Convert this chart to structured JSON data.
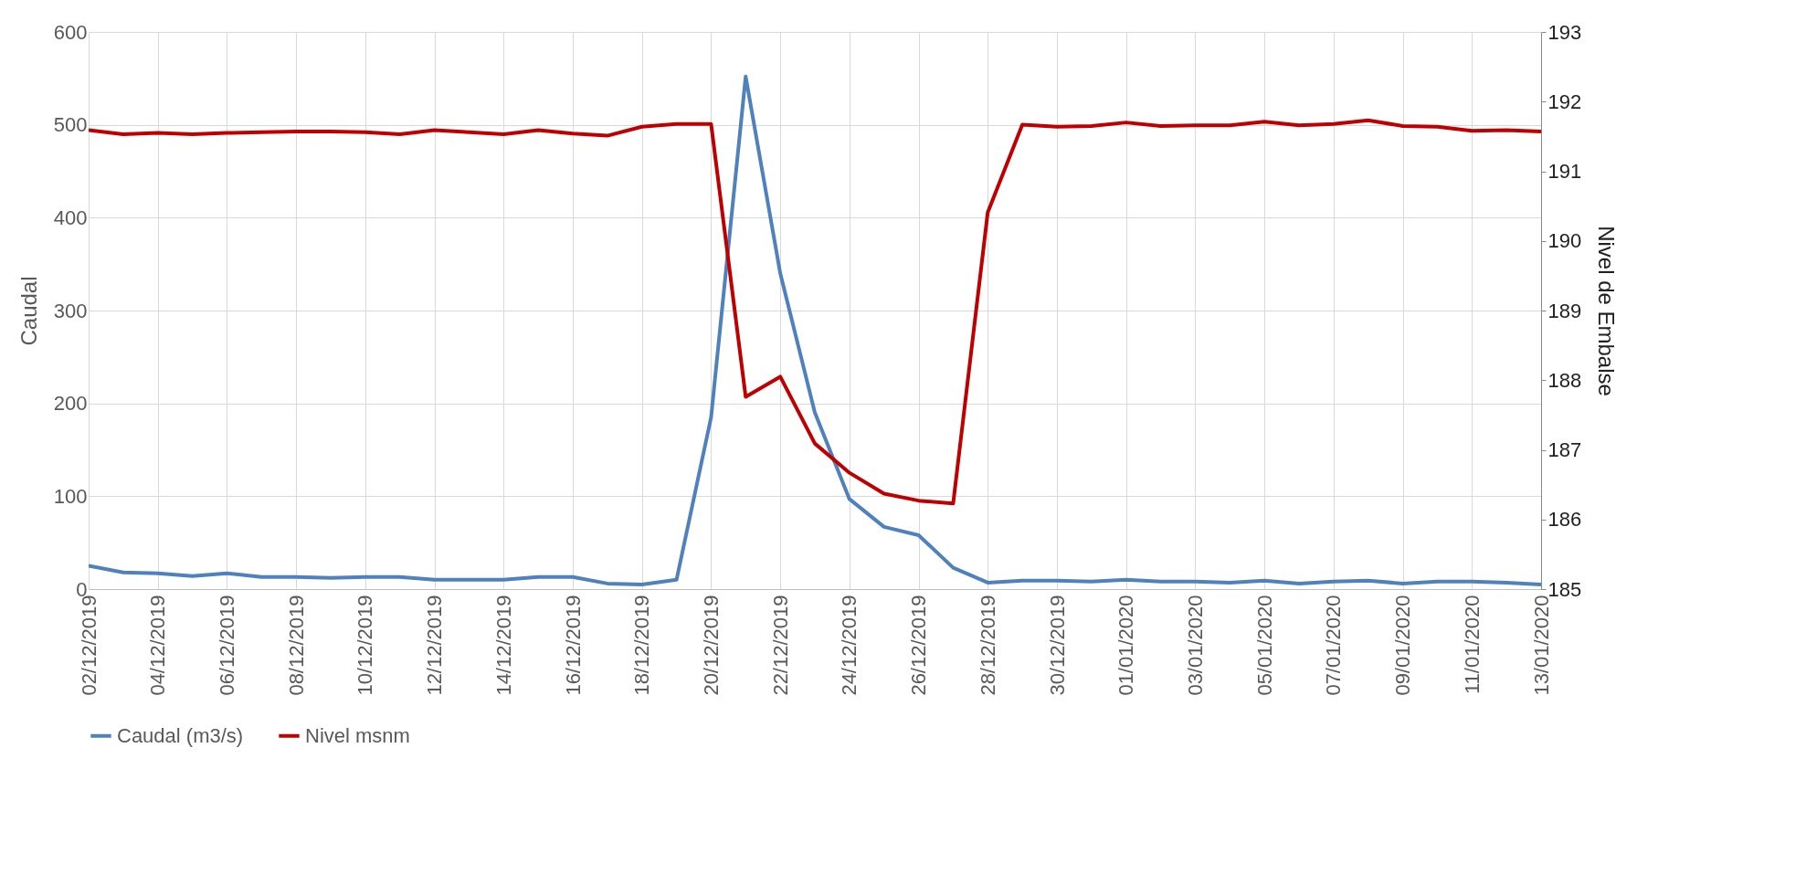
{
  "chart_data": {
    "type": "line",
    "xlabel": null,
    "ylabel": "Caudal",
    "y2label": "Nivel de Embalse",
    "x": [
      "2019-12-02",
      "2019-12-03",
      "2019-12-04",
      "2019-12-05",
      "2019-12-06",
      "2019-12-07",
      "2019-12-08",
      "2019-12-09",
      "2019-12-10",
      "2019-12-11",
      "2019-12-12",
      "2019-12-13",
      "2019-12-14",
      "2019-12-15",
      "2019-12-16",
      "2019-12-17",
      "2019-12-18",
      "2019-12-19",
      "2019-12-20",
      "2019-12-21",
      "2019-12-22",
      "2019-12-23",
      "2019-12-24",
      "2019-12-25",
      "2019-12-26",
      "2019-12-27",
      "2019-12-28",
      "2019-12-29",
      "2019-12-30",
      "2019-12-31",
      "2020-01-01",
      "2020-01-02",
      "2020-01-03",
      "2020-01-04",
      "2020-01-05",
      "2020-01-06",
      "2020-01-07",
      "2020-01-08",
      "2020-01-09",
      "2020-01-10",
      "2020-01-11",
      "2020-01-12",
      "2020-01-13"
    ],
    "series": [
      {
        "name": "Caudal (m3/s)",
        "color": "#4f81bd",
        "values": [
          25,
          18,
          17,
          14,
          17,
          13,
          13,
          12,
          13,
          13,
          10,
          10,
          10,
          13,
          13,
          6,
          5,
          10,
          185,
          552,
          340,
          190,
          97,
          67,
          58,
          23,
          7,
          9,
          9,
          8,
          10,
          8,
          8,
          7,
          9,
          6,
          8,
          9,
          6,
          8,
          8,
          7,
          5
        ]
      },
      {
        "name": "Nivel msnm",
        "color": "#c00000",
        "axis": "y2",
        "values": [
          191.59,
          191.53,
          191.55,
          191.53,
          191.55,
          191.56,
          191.57,
          191.57,
          191.56,
          191.53,
          191.59,
          191.56,
          191.53,
          191.59,
          191.54,
          191.51,
          191.64,
          191.68,
          191.68,
          187.76,
          188.05,
          187.09,
          186.67,
          186.37,
          186.27,
          186.23,
          190.41,
          191.67,
          191.64,
          191.65,
          191.7,
          191.65,
          191.66,
          191.66,
          191.71,
          191.66,
          191.68,
          191.73,
          191.65,
          191.64,
          191.58,
          191.59,
          191.57
        ]
      }
    ],
    "xlim": [
      "2019-12-02",
      "2020-01-13"
    ],
    "xticks": [
      {
        "value": "2019-12-02",
        "label": "02/12/2019"
      },
      {
        "value": "2019-12-04",
        "label": "04/12/2019"
      },
      {
        "value": "2019-12-06",
        "label": "06/12/2019"
      },
      {
        "value": "2019-12-08",
        "label": "08/12/2019"
      },
      {
        "value": "2019-12-10",
        "label": "10/12/2019"
      },
      {
        "value": "2019-12-12",
        "label": "12/12/2019"
      },
      {
        "value": "2019-12-14",
        "label": "14/12/2019"
      },
      {
        "value": "2019-12-16",
        "label": "16/12/2019"
      },
      {
        "value": "2019-12-18",
        "label": "18/12/2019"
      },
      {
        "value": "2019-12-20",
        "label": "20/12/2019"
      },
      {
        "value": "2019-12-22",
        "label": "22/12/2019"
      },
      {
        "value": "2019-12-24",
        "label": "24/12/2019"
      },
      {
        "value": "2019-12-26",
        "label": "26/12/2019"
      },
      {
        "value": "2019-12-28",
        "label": "28/12/2019"
      },
      {
        "value": "2019-12-30",
        "label": "30/12/2019"
      },
      {
        "value": "2020-01-01",
        "label": "01/01/2020"
      },
      {
        "value": "2020-01-03",
        "label": "03/01/2020"
      },
      {
        "value": "2020-01-05",
        "label": "05/01/2020"
      },
      {
        "value": "2020-01-07",
        "label": "07/01/2020"
      },
      {
        "value": "2020-01-09",
        "label": "09/01/2020"
      },
      {
        "value": "2020-01-11",
        "label": "11/01/2020"
      },
      {
        "value": "2020-01-13",
        "label": "13/01/2020"
      }
    ],
    "ylim": [
      0,
      600
    ],
    "yticks": [
      0,
      100,
      200,
      300,
      400,
      500,
      600
    ],
    "y2lim": [
      185,
      193
    ],
    "y2ticks": [
      185,
      186,
      187,
      188,
      189,
      190,
      191,
      192,
      193
    ],
    "grid": true,
    "legend": "bottom",
    "line_style": "solid"
  }
}
